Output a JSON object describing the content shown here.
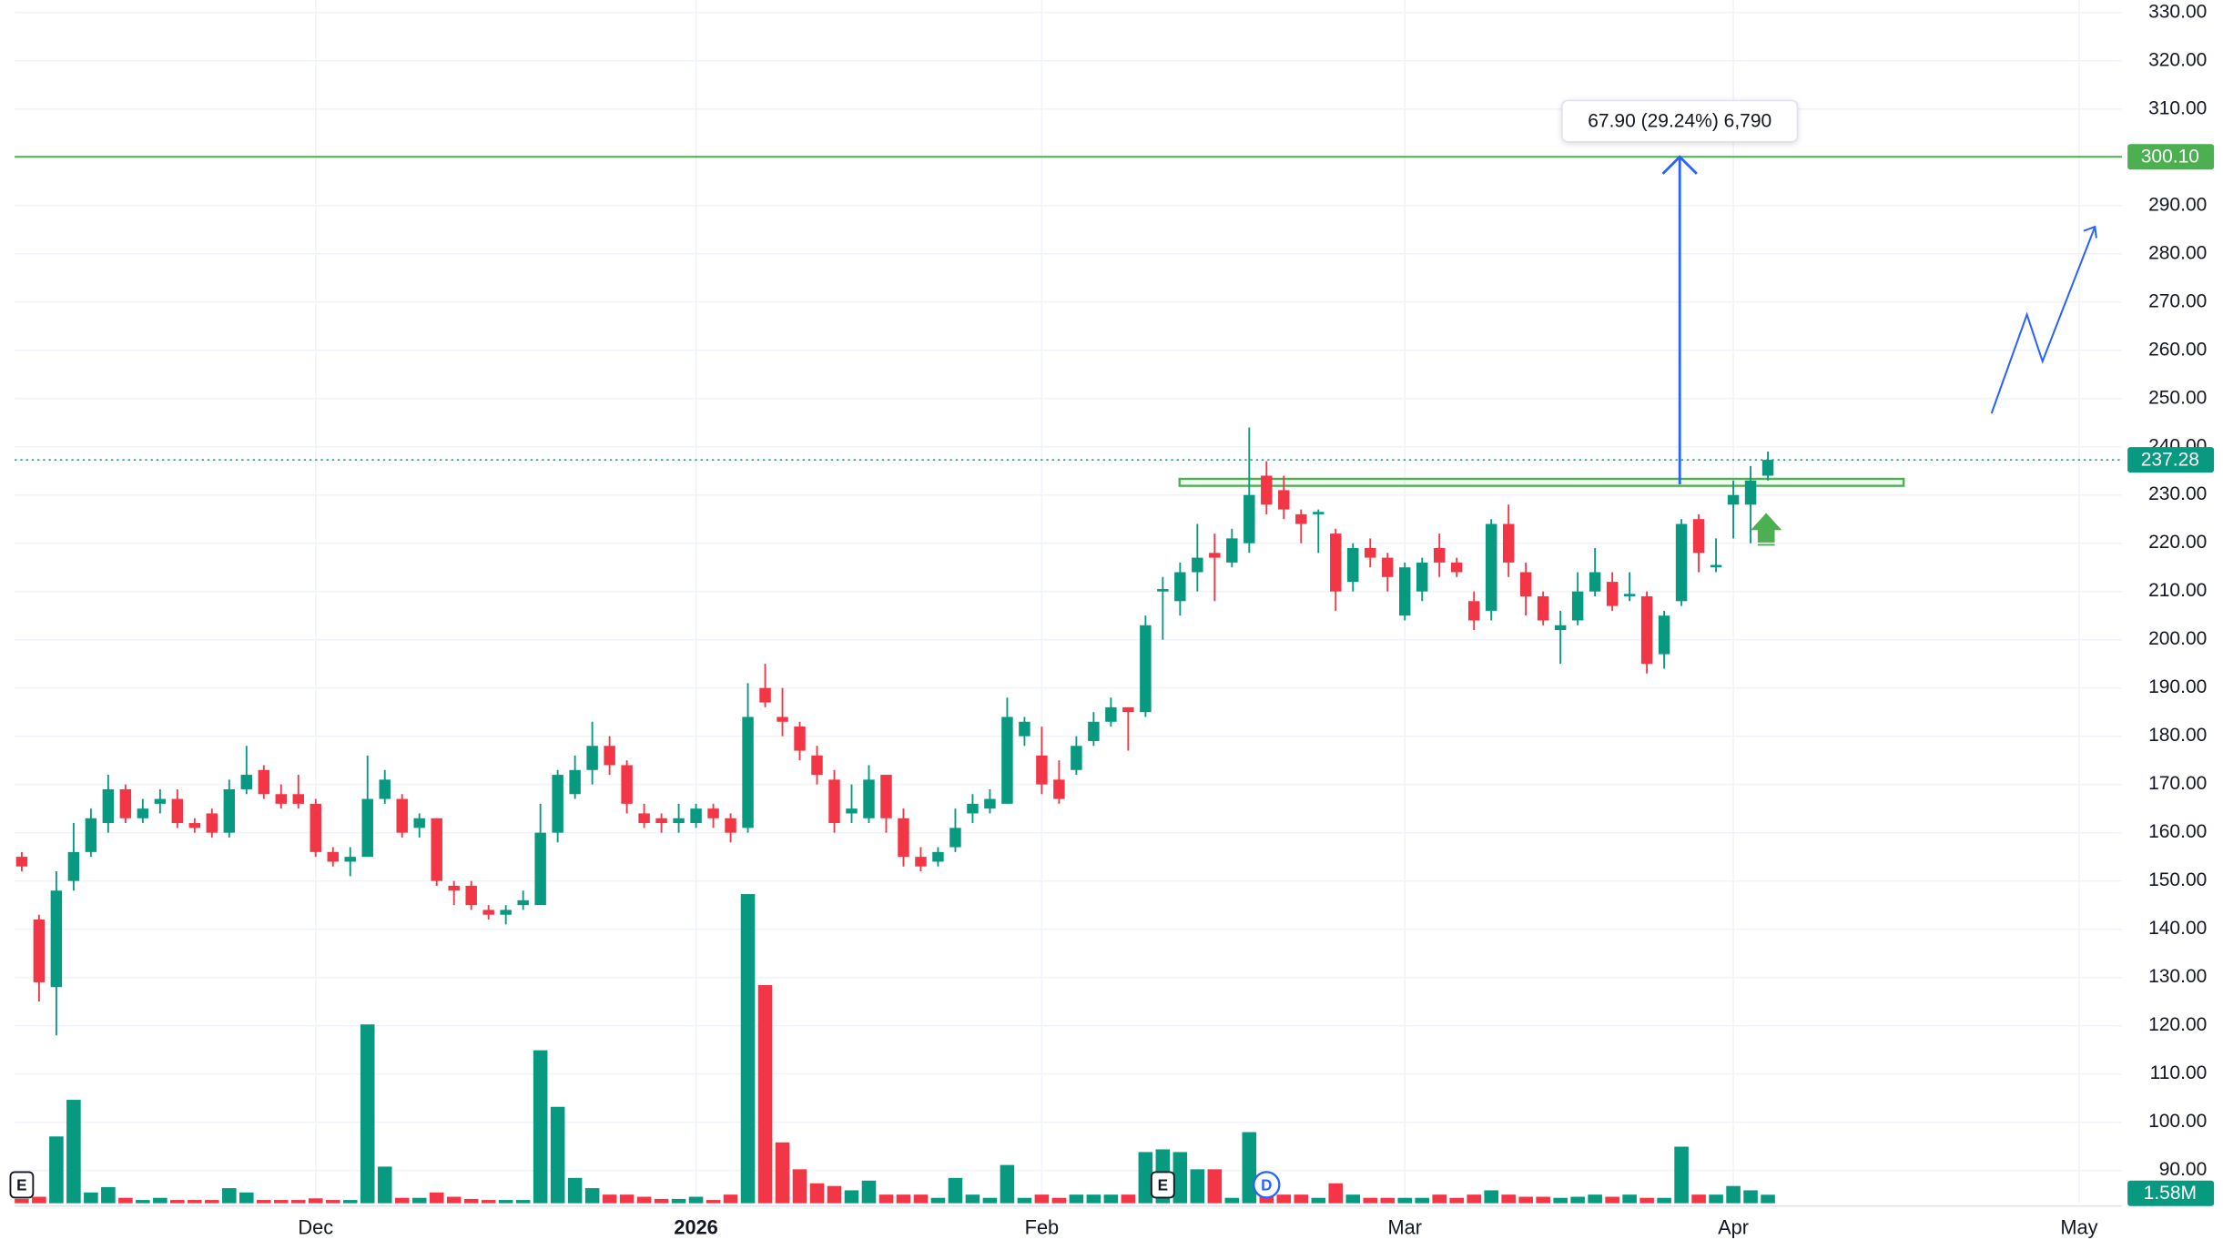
{
  "chart_data": {
    "type": "candlestick",
    "categories": [
      null,
      null,
      null,
      null,
      null,
      null,
      null,
      null,
      null,
      null,
      null,
      null,
      null,
      null,
      null,
      null,
      null,
      "Dec",
      null,
      null,
      null,
      null,
      null,
      null,
      null,
      null,
      null,
      null,
      null,
      null,
      null,
      null,
      null,
      null,
      null,
      null,
      null,
      null,
      null,
      "2026",
      null,
      null,
      null,
      null,
      null,
      null,
      null,
      null,
      null,
      null,
      null,
      null,
      null,
      null,
      null,
      null,
      null,
      null,
      null,
      "Feb",
      null,
      null,
      null,
      null,
      null,
      null,
      null,
      null,
      null,
      null,
      null,
      null,
      null,
      null,
      null,
      null,
      null,
      null,
      null,
      null,
      "Mar",
      null,
      null,
      null,
      null,
      null,
      null,
      null,
      null,
      null,
      null,
      null,
      null,
      null,
      null,
      null,
      null,
      null,
      null,
      "Apr",
      null,
      null,
      null,
      null,
      null,
      null,
      null,
      null,
      null,
      null,
      null,
      null,
      null,
      null,
      null,
      null,
      null,
      null,
      null,
      "May",
      null,
      null
    ],
    "open": [
      155,
      142,
      128,
      150,
      156,
      162,
      169,
      163,
      166,
      167,
      162,
      164,
      160,
      169,
      173,
      168,
      168,
      166,
      156,
      154,
      155,
      167,
      167,
      161,
      163,
      149,
      149,
      144,
      143,
      145,
      145,
      160,
      168,
      173,
      178,
      174,
      164,
      163,
      162,
      162,
      165,
      163,
      161,
      190,
      184,
      182,
      176,
      171,
      164,
      163,
      172,
      163,
      155,
      154,
      157,
      164,
      165,
      166,
      180,
      176,
      171,
      173,
      179,
      183,
      186,
      185,
      210,
      208,
      214,
      218,
      216,
      220,
      234,
      231,
      226,
      226,
      222,
      212,
      219,
      217,
      205,
      210,
      219,
      216,
      208,
      206,
      224,
      214,
      209,
      202,
      204,
      210,
      212,
      209,
      209,
      197,
      208,
      225,
      215,
      228,
      228,
      234,
      null,
      null,
      null,
      null,
      null,
      null,
      null,
      null,
      null,
      null,
      null,
      null,
      null,
      null,
      null,
      null,
      null,
      null,
      null,
      null
    ],
    "high": [
      156,
      143,
      152,
      162,
      165,
      172,
      170,
      167,
      169,
      169,
      163,
      165,
      171,
      178,
      174,
      170,
      172,
      167,
      157,
      157,
      176,
      173,
      168,
      164,
      163,
      150,
      150,
      145,
      145,
      148,
      166,
      173,
      176,
      183,
      180,
      175,
      166,
      164,
      166,
      166,
      166,
      164,
      191,
      195,
      190,
      183,
      178,
      173,
      170,
      174,
      172,
      165,
      157,
      157,
      165,
      168,
      169,
      188,
      184,
      182,
      175,
      180,
      185,
      188,
      186,
      205,
      213,
      216,
      224,
      222,
      223,
      244,
      237,
      234,
      227,
      227,
      223,
      220,
      221,
      218,
      216,
      217,
      222,
      217,
      210,
      225,
      228,
      216,
      210,
      206,
      214,
      219,
      214,
      214,
      210,
      206,
      225,
      226,
      221,
      233,
      236,
      239,
      null,
      null,
      null,
      null,
      null,
      null,
      null,
      null,
      null,
      null,
      null,
      null,
      null,
      null,
      null,
      null,
      null,
      null,
      null,
      null
    ],
    "low": [
      152,
      125,
      118,
      148,
      155,
      160,
      162,
      162,
      164,
      161,
      160,
      159,
      159,
      168,
      167,
      165,
      165,
      155,
      153,
      151,
      155,
      166,
      159,
      159,
      149,
      145,
      144,
      142,
      141,
      144,
      145,
      158,
      167,
      170,
      172,
      164,
      161,
      160,
      160,
      161,
      161,
      158,
      160,
      186,
      180,
      175,
      170,
      160,
      162,
      162,
      160,
      153,
      152,
      153,
      156,
      162,
      164,
      166,
      178,
      168,
      166,
      172,
      178,
      182,
      177,
      184,
      200,
      205,
      210,
      208,
      215,
      218,
      226,
      225,
      220,
      218,
      206,
      210,
      215,
      210,
      204,
      208,
      213,
      213,
      202,
      204,
      213,
      205,
      203,
      195,
      203,
      209,
      206,
      208,
      193,
      194,
      207,
      214,
      214,
      221,
      220,
      233,
      null,
      null,
      null,
      null,
      null,
      null,
      null,
      null,
      null,
      null,
      null,
      null,
      null,
      null,
      null,
      null,
      null,
      null,
      null,
      null
    ],
    "close": [
      153,
      129,
      148,
      156,
      163,
      169,
      163,
      165,
      167,
      162,
      161,
      160,
      169,
      172,
      168,
      166,
      166,
      156,
      154,
      155,
      167,
      171,
      160,
      163,
      150,
      148,
      145,
      143,
      144,
      146,
      160,
      172,
      173,
      178,
      174,
      166,
      162,
      162,
      163,
      165,
      163,
      160,
      184,
      187,
      183,
      177,
      172,
      162,
      165,
      171,
      163,
      155,
      153,
      156,
      161,
      166,
      167,
      184,
      183,
      170,
      167,
      178,
      183,
      186,
      185,
      203,
      210.5,
      214,
      217,
      217,
      221,
      230,
      228,
      227,
      224,
      226.5,
      210,
      219,
      217,
      213,
      215,
      216,
      216,
      214,
      204,
      224,
      216,
      209,
      204,
      203,
      210,
      214,
      207,
      209.5,
      195,
      205,
      224,
      218,
      215.5,
      230,
      233,
      237.28,
      null,
      null,
      null,
      null,
      null,
      null,
      null,
      null,
      null,
      null,
      null,
      null,
      null,
      null,
      null,
      null,
      null,
      null,
      null,
      null
    ],
    "volume": [
      0.8,
      1.2,
      12.4,
      19.2,
      2.0,
      3.0,
      1.0,
      0.6,
      1.0,
      0.6,
      0.6,
      0.6,
      2.8,
      2.0,
      0.6,
      0.6,
      0.6,
      0.9,
      0.6,
      0.6,
      33.2,
      6.8,
      1.0,
      1.0,
      2.0,
      1.2,
      0.8,
      0.6,
      0.6,
      0.6,
      28.4,
      17.9,
      4.7,
      2.8,
      1.6,
      1.6,
      1.2,
      0.8,
      0.8,
      1.2,
      0.6,
      1.6,
      57.4,
      40.5,
      11.3,
      6.3,
      3.7,
      3.2,
      2.4,
      4.2,
      1.6,
      1.6,
      1.6,
      1.0,
      4.7,
      1.6,
      1.0,
      7.1,
      1.0,
      1.6,
      1.0,
      1.6,
      1.6,
      1.6,
      1.6,
      9.5,
      10.0,
      9.5,
      6.3,
      6.3,
      1.0,
      13.2,
      3.2,
      1.6,
      1.6,
      1.0,
      3.7,
      1.6,
      1.0,
      1.0,
      1.0,
      1.0,
      1.6,
      1.0,
      1.6,
      2.4,
      1.6,
      1.2,
      1.2,
      1.0,
      1.2,
      1.6,
      1.2,
      1.6,
      1.0,
      1.0,
      10.5,
      1.6,
      1.6,
      3.2,
      2.4,
      1.58,
      null,
      null,
      null,
      null,
      null,
      null,
      null,
      null,
      null,
      null,
      null,
      null,
      null,
      null,
      null,
      null,
      null,
      null,
      null,
      null
    ],
    "colors": {
      "up": "#089981",
      "down": "#f23645"
    },
    "ylim": [
      83.2,
      332.6
    ],
    "yticks": [
      {
        "value": 90,
        "label": "90.00"
      },
      {
        "value": 100,
        "label": "100.00"
      },
      {
        "value": 110,
        "label": "110.00"
      },
      {
        "value": 120,
        "label": "120.00"
      },
      {
        "value": 130,
        "label": "130.00"
      },
      {
        "value": 140,
        "label": "140.00"
      },
      {
        "value": 150,
        "label": "150.00"
      },
      {
        "value": 160,
        "label": "160.00"
      },
      {
        "value": 170,
        "label": "170.00"
      },
      {
        "value": 180,
        "label": "180.00"
      },
      {
        "value": 190,
        "label": "190.00"
      },
      {
        "value": 200,
        "label": "200.00"
      },
      {
        "value": 210,
        "label": "210.00"
      },
      {
        "value": 220,
        "label": "220.00"
      },
      {
        "value": 230,
        "label": "230.00"
      },
      {
        "value": 240,
        "label": "240.00"
      },
      {
        "value": 250,
        "label": "250.00"
      },
      {
        "value": 260,
        "label": "260.00"
      },
      {
        "value": 270,
        "label": "270.00"
      },
      {
        "value": 280,
        "label": "280.00"
      },
      {
        "value": 290,
        "label": "290.00"
      },
      {
        "value": 300,
        "label": "300.00"
      },
      {
        "value": 310,
        "label": "310.00"
      },
      {
        "value": 320,
        "label": "320.00"
      },
      {
        "value": 330,
        "label": "330.00"
      }
    ],
    "grid": true,
    "target_line": {
      "value": 300.1,
      "label": "300.10",
      "color": "#4caf50"
    },
    "last_price": {
      "value": 237.28,
      "label": "237.28"
    },
    "last_volume": {
      "value": 1.58,
      "label": "1.58M"
    },
    "measure": {
      "from": 232.2,
      "to": 300.1,
      "label": "67.90 (29.24%) 6,790",
      "color": "#2962ff"
    },
    "zone": {
      "low": 231.9,
      "high": 233.35,
      "color": "#4caf50"
    },
    "projection": [
      246.9,
      267.4,
      257.7,
      285.6
    ],
    "events": [
      {
        "label": "E",
        "index": 0
      },
      {
        "label": "E",
        "index": 66
      },
      {
        "label": "D",
        "index": 72
      }
    ]
  }
}
